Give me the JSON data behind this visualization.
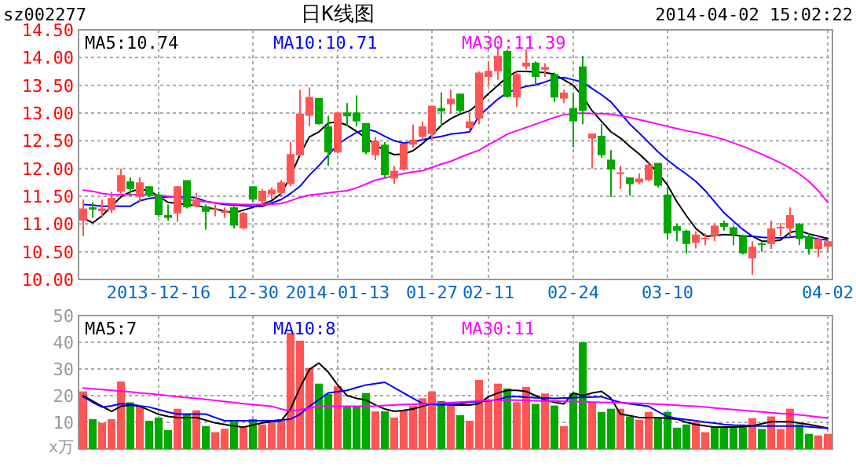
{
  "chart_data": [
    {
      "type": "candlestick",
      "title": "日K线图",
      "annotations": [
        "sz002277",
        "2014-04-02 15:02:22"
      ],
      "categories": [
        null,
        null,
        null,
        null,
        null,
        null,
        null,
        null,
        "2013-12-16",
        null,
        null,
        null,
        null,
        null,
        null,
        null,
        null,
        null,
        "12-30",
        null,
        null,
        null,
        null,
        null,
        null,
        null,
        null,
        "2014-01-13",
        null,
        null,
        null,
        null,
        null,
        null,
        null,
        null,
        null,
        "01-27",
        null,
        null,
        null,
        null,
        null,
        "02-11",
        null,
        null,
        null,
        null,
        null,
        null,
        null,
        null,
        "02-24",
        null,
        null,
        null,
        null,
        null,
        null,
        null,
        null,
        null,
        "03-10",
        null,
        null,
        null,
        null,
        null,
        null,
        null,
        null,
        null,
        null,
        null,
        null,
        null,
        null,
        null,
        null,
        "04-02"
      ],
      "ohlc": [
        [
          11.06,
          11.44,
          10.78,
          11.28
        ],
        [
          11.3,
          11.39,
          11.11,
          11.26
        ],
        [
          11.23,
          11.44,
          11.11,
          11.28
        ],
        [
          11.25,
          11.58,
          11.2,
          11.47
        ],
        [
          11.58,
          12.0,
          11.53,
          11.88
        ],
        [
          11.77,
          11.84,
          11.53,
          11.63
        ],
        [
          11.49,
          11.84,
          11.39,
          11.75
        ],
        [
          11.68,
          11.68,
          11.49,
          11.51
        ],
        [
          11.53,
          11.58,
          11.13,
          11.16
        ],
        [
          11.16,
          11.35,
          11.06,
          11.11
        ],
        [
          11.19,
          11.68,
          11.04,
          11.68
        ],
        [
          11.79,
          11.79,
          11.28,
          11.3
        ],
        [
          11.32,
          11.56,
          11.3,
          11.44
        ],
        [
          11.32,
          11.35,
          10.9,
          11.22
        ],
        [
          11.26,
          11.35,
          11.14,
          11.28
        ],
        [
          11.2,
          11.3,
          11.11,
          11.24
        ],
        [
          11.3,
          11.32,
          10.92,
          10.97
        ],
        [
          10.92,
          11.22,
          10.9,
          11.2
        ],
        [
          11.68,
          11.68,
          11.39,
          11.44
        ],
        [
          11.41,
          11.63,
          11.35,
          11.6
        ],
        [
          11.53,
          11.66,
          11.44,
          11.62
        ],
        [
          11.56,
          11.79,
          11.49,
          11.75
        ],
        [
          11.72,
          12.48,
          11.68,
          12.26
        ],
        [
          12.24,
          13.42,
          12.22,
          12.99
        ],
        [
          12.95,
          13.46,
          12.76,
          13.29
        ],
        [
          13.27,
          13.27,
          12.79,
          12.8
        ],
        [
          12.76,
          12.95,
          12.05,
          12.29
        ],
        [
          12.29,
          13.01,
          12.27,
          13.01
        ],
        [
          13.01,
          13.18,
          12.76,
          12.94
        ],
        [
          13.01,
          13.32,
          12.76,
          12.85
        ],
        [
          12.82,
          12.82,
          12.26,
          12.29
        ],
        [
          12.24,
          12.57,
          12.15,
          12.5
        ],
        [
          12.43,
          12.48,
          11.84,
          11.88
        ],
        [
          11.82,
          12.05,
          11.72,
          11.96
        ],
        [
          11.98,
          12.45,
          11.96,
          12.45
        ],
        [
          12.43,
          12.79,
          12.38,
          12.52
        ],
        [
          12.57,
          12.85,
          12.52,
          12.76
        ],
        [
          12.62,
          13.13,
          12.52,
          13.13
        ],
        [
          13.09,
          13.37,
          12.76,
          13.03
        ],
        [
          13.16,
          13.42,
          12.99,
          13.26
        ],
        [
          13.35,
          13.35,
          12.99,
          13.04
        ],
        [
          12.73,
          12.99,
          12.69,
          12.85
        ],
        [
          12.9,
          13.75,
          12.8,
          13.73
        ],
        [
          13.65,
          13.93,
          13.51,
          13.76
        ],
        [
          13.75,
          14.2,
          13.6,
          14.03
        ],
        [
          14.12,
          14.14,
          13.28,
          13.29
        ],
        [
          13.28,
          13.75,
          13.11,
          13.7
        ],
        [
          13.84,
          14.15,
          13.79,
          13.91
        ],
        [
          13.91,
          13.93,
          13.48,
          13.65
        ],
        [
          13.78,
          13.9,
          13.65,
          13.83
        ],
        [
          13.7,
          13.73,
          13.2,
          13.28
        ],
        [
          13.26,
          13.42,
          13.18,
          13.37
        ],
        [
          13.09,
          13.37,
          12.38,
          12.85
        ],
        [
          13.84,
          14.03,
          12.8,
          13.04
        ],
        [
          12.54,
          12.63,
          12.0,
          12.63
        ],
        [
          12.59,
          12.8,
          12.19,
          12.24
        ],
        [
          12.16,
          12.33,
          11.49,
          11.98
        ],
        [
          11.9,
          12.05,
          11.63,
          11.93
        ],
        [
          11.84,
          11.84,
          11.51,
          11.72
        ],
        [
          11.75,
          11.91,
          11.72,
          11.82
        ],
        [
          11.79,
          12.1,
          11.77,
          12.07
        ],
        [
          12.1,
          12.1,
          11.66,
          11.69
        ],
        [
          11.53,
          11.67,
          10.73,
          10.83
        ],
        [
          10.96,
          11.0,
          10.69,
          10.88
        ],
        [
          10.88,
          10.9,
          10.47,
          10.64
        ],
        [
          10.66,
          10.87,
          10.56,
          10.81
        ],
        [
          10.74,
          10.83,
          10.62,
          10.75
        ],
        [
          10.78,
          11.0,
          10.69,
          10.97
        ],
        [
          11.02,
          11.06,
          10.88,
          10.95
        ],
        [
          10.94,
          10.97,
          10.62,
          10.81
        ],
        [
          10.78,
          10.81,
          10.45,
          10.47
        ],
        [
          10.38,
          10.69,
          10.08,
          10.59
        ],
        [
          10.65,
          10.69,
          10.5,
          10.63
        ],
        [
          10.64,
          11.06,
          10.55,
          10.92
        ],
        [
          10.92,
          11.02,
          10.78,
          10.95
        ],
        [
          10.92,
          11.3,
          10.78,
          11.16
        ],
        [
          11.0,
          11.02,
          10.62,
          10.73
        ],
        [
          10.78,
          10.83,
          10.45,
          10.55
        ],
        [
          10.55,
          10.78,
          10.4,
          10.73
        ],
        [
          10.59,
          10.73,
          10.5,
          10.69
        ]
      ],
      "colors": [
        "#ff5555",
        "#00a800",
        "#ff5555",
        "#ff5555",
        "#ff5555",
        "#00a800",
        "#ff5555",
        "#00a800",
        "#00a800",
        "#00a800",
        "#ff5555",
        "#00a800",
        "#ff5555",
        "#00a800",
        "#ff5555",
        "#ff5555",
        "#00a800",
        "#ff5555",
        "#00a800",
        "#ff5555",
        "#ff5555",
        "#ff5555",
        "#ff5555",
        "#ff5555",
        "#ff5555",
        "#00a800",
        "#00a800",
        "#ff5555",
        "#00a800",
        "#00a800",
        "#00a800",
        "#ff5555",
        "#00a800",
        "#ff5555",
        "#ff5555",
        "#ff5555",
        "#ff5555",
        "#ff5555",
        "#00a800",
        "#ff5555",
        "#00a800",
        "#ff5555",
        "#ff5555",
        "#ff5555",
        "#ff5555",
        "#00a800",
        "#ff5555",
        "#ff5555",
        "#00a800",
        "#ff5555",
        "#00a800",
        "#ff5555",
        "#00a800",
        "#00a800",
        "#ff5555",
        "#00a800",
        "#00a800",
        "#ff5555",
        "#00a800",
        "#ff5555",
        "#ff5555",
        "#00a800",
        "#00a800",
        "#00a800",
        "#00a800",
        "#ff5555",
        "#ff5555",
        "#ff5555",
        "#00a800",
        "#00a800",
        "#00a800",
        "#ff5555",
        "#00a800",
        "#ff5555",
        "#ff5555",
        "#ff5555",
        "#00a800",
        "#00a800",
        "#ff5555",
        "#ff5555"
      ],
      "series": [
        {
          "type": "line",
          "name": "MA5:10.74",
          "color": "#000000",
          "values": [
            11.11,
            11.02,
            11.15,
            11.32,
            11.49,
            11.58,
            11.63,
            11.6,
            11.5,
            11.39,
            11.37,
            11.35,
            11.33,
            11.3,
            11.27,
            11.23,
            11.2,
            11.25,
            11.3,
            11.36,
            11.42,
            11.55,
            11.86,
            12.25,
            12.57,
            12.66,
            12.82,
            12.84,
            12.78,
            12.67,
            12.55,
            12.43,
            12.32,
            12.25,
            12.26,
            12.32,
            12.45,
            12.6,
            12.78,
            12.9,
            12.98,
            13.04,
            13.18,
            13.35,
            13.5,
            13.65,
            13.75,
            13.75,
            13.74,
            13.73,
            13.7,
            13.6,
            13.5,
            13.3,
            13.04,
            12.85,
            12.66,
            12.55,
            12.4,
            12.26,
            12.1,
            11.92,
            11.7,
            11.4,
            11.15,
            10.92,
            10.78,
            10.79,
            10.81,
            10.8,
            10.78,
            10.78,
            10.69,
            10.69,
            10.71,
            10.85,
            10.88,
            10.82,
            10.78,
            10.74
          ]
        },
        {
          "type": "line",
          "name": "MA10:10.71",
          "color": "#0000ff",
          "values": [
            11.35,
            11.34,
            11.32,
            11.32,
            11.32,
            11.32,
            11.42,
            11.46,
            11.48,
            11.49,
            11.49,
            11.49,
            11.47,
            11.41,
            11.38,
            11.35,
            11.34,
            11.33,
            11.32,
            11.32,
            11.38,
            11.44,
            11.55,
            11.68,
            11.88,
            12.05,
            12.24,
            12.43,
            12.55,
            12.65,
            12.71,
            12.67,
            12.58,
            12.5,
            12.46,
            12.48,
            12.52,
            12.55,
            12.58,
            12.62,
            12.64,
            12.66,
            12.95,
            13.1,
            13.25,
            13.37,
            13.43,
            13.48,
            13.51,
            13.56,
            13.62,
            13.64,
            13.6,
            13.56,
            13.44,
            13.33,
            13.2,
            13.0,
            12.8,
            12.64,
            12.47,
            12.3,
            12.15,
            12.02,
            11.9,
            11.77,
            11.6,
            11.4,
            11.2,
            11.05,
            10.9,
            10.78,
            10.76,
            10.75,
            10.75,
            10.76,
            10.78,
            10.76,
            10.73,
            10.71
          ]
        },
        {
          "type": "line",
          "name": "MA30:11.39",
          "color": "#ff00ff",
          "values": [
            11.61,
            11.59,
            11.55,
            11.53,
            11.53,
            11.53,
            11.53,
            11.52,
            11.52,
            11.5,
            11.47,
            11.44,
            11.42,
            11.4,
            11.38,
            11.37,
            11.36,
            11.35,
            11.35,
            11.35,
            11.36,
            11.37,
            11.42,
            11.48,
            11.52,
            11.54,
            11.56,
            11.58,
            11.6,
            11.65,
            11.72,
            11.79,
            11.83,
            11.87,
            11.91,
            11.94,
            11.96,
            12.02,
            12.08,
            12.13,
            12.2,
            12.27,
            12.33,
            12.43,
            12.52,
            12.62,
            12.68,
            12.74,
            12.8,
            12.86,
            12.92,
            12.97,
            12.99,
            13.0,
            12.99,
            12.99,
            12.98,
            12.95,
            12.92,
            12.88,
            12.84,
            12.8,
            12.76,
            12.72,
            12.68,
            12.65,
            12.61,
            12.57,
            12.52,
            12.46,
            12.4,
            12.33,
            12.26,
            12.18,
            12.1,
            12.01,
            11.9,
            11.77,
            11.6,
            11.39
          ]
        }
      ],
      "ylim": [
        10,
        14.5
      ],
      "yticks": [
        {
          "value": 10,
          "label": "10.00"
        },
        {
          "value": 10.5,
          "label": "10.50"
        },
        {
          "value": 11,
          "label": "11.00"
        },
        {
          "value": 11.5,
          "label": "11.50"
        },
        {
          "value": 12,
          "label": "12.00"
        },
        {
          "value": 12.5,
          "label": "12.50"
        },
        {
          "value": 13,
          "label": "13.00"
        },
        {
          "value": 13.5,
          "label": "13.50"
        },
        {
          "value": 14,
          "label": "14.00"
        },
        {
          "value": 14.5,
          "label": "14.50"
        }
      ],
      "grid": true,
      "legend": "top"
    },
    {
      "type": "bar",
      "ylabel": "x万",
      "categories": [
        null,
        null,
        null,
        null,
        null,
        null,
        null,
        null,
        null,
        null,
        null,
        null,
        null,
        null,
        null,
        null,
        null,
        null,
        null,
        null,
        null,
        null,
        null,
        null,
        null,
        null,
        null,
        null,
        null,
        null,
        null,
        null,
        null,
        null,
        null,
        null,
        null,
        null,
        null,
        null,
        null,
        null,
        null,
        null,
        null,
        null,
        null,
        null,
        null,
        null,
        null,
        null,
        null,
        null,
        null,
        null,
        null,
        null,
        null,
        null,
        null,
        null,
        null,
        null,
        null,
        null,
        null,
        null,
        null,
        null,
        null,
        null,
        null,
        null,
        null,
        null,
        null,
        null,
        null,
        null
      ],
      "values": [
        21.6,
        11.2,
        9.8,
        11.2,
        25.3,
        17.5,
        16.1,
        10.6,
        11.8,
        7.1,
        15.1,
        13.1,
        14.5,
        8.6,
        6.3,
        7.6,
        10.2,
        8.2,
        11.2,
        9.2,
        9.8,
        11.2,
        43.5,
        40.6,
        30.4,
        24.5,
        20.6,
        23.5,
        16.1,
        16.1,
        21.0,
        14.1,
        14.1,
        11.8,
        14.5,
        16.1,
        19.0,
        21.6,
        18.0,
        17.1,
        12.7,
        10.6,
        25.9,
        18.6,
        24.5,
        22.7,
        17.5,
        23.3,
        16.9,
        20.8,
        16.3,
        8.6,
        21.0,
        40.0,
        17.5,
        13.9,
        15.1,
        15.1,
        12.2,
        11.0,
        13.9,
        11.6,
        13.9,
        8.0,
        9.2,
        10.0,
        6.3,
        8.4,
        8.4,
        8.4,
        8.4,
        11.6,
        7.5,
        12.2,
        7.5,
        15.1,
        9.2,
        5.7,
        5.1,
        5.7
      ],
      "colors": [
        "#ff5555",
        "#00a800",
        "#ff5555",
        "#ff5555",
        "#ff5555",
        "#00a800",
        "#ff5555",
        "#00a800",
        "#00a800",
        "#00a800",
        "#ff5555",
        "#00a800",
        "#ff5555",
        "#00a800",
        "#ff5555",
        "#ff5555",
        "#00a800",
        "#ff5555",
        "#00a800",
        "#ff5555",
        "#ff5555",
        "#ff5555",
        "#ff5555",
        "#ff5555",
        "#ff5555",
        "#00a800",
        "#00a800",
        "#ff5555",
        "#00a800",
        "#00a800",
        "#00a800",
        "#ff5555",
        "#00a800",
        "#ff5555",
        "#ff5555",
        "#ff5555",
        "#ff5555",
        "#ff5555",
        "#00a800",
        "#ff5555",
        "#00a800",
        "#ff5555",
        "#ff5555",
        "#ff5555",
        "#ff5555",
        "#00a800",
        "#ff5555",
        "#ff5555",
        "#00a800",
        "#ff5555",
        "#00a800",
        "#ff5555",
        "#00a800",
        "#00a800",
        "#ff5555",
        "#00a800",
        "#00a800",
        "#ff5555",
        "#00a800",
        "#ff5555",
        "#ff5555",
        "#00a800",
        "#00a800",
        "#00a800",
        "#00a800",
        "#ff5555",
        "#ff5555",
        "#00a800",
        "#00a800",
        "#00a800",
        "#00a800",
        "#ff5555",
        "#00a800",
        "#ff5555",
        "#ff5555",
        "#ff5555",
        "#00a800",
        "#00a800",
        "#ff5555",
        "#ff5555"
      ],
      "series": [
        {
          "type": "line",
          "name": "MA5:7",
          "color": "#000000",
          "values": [
            20,
            18,
            16,
            14.1,
            16,
            16.5,
            16,
            14.5,
            13,
            12.2,
            11.8,
            11.8,
            11.8,
            10.8,
            9.8,
            9.2,
            8.6,
            8.2,
            9,
            9.8,
            10.2,
            10.6,
            15,
            23,
            29.8,
            32.2,
            28.8,
            24,
            20,
            19,
            18.4,
            16.5,
            15,
            14.1,
            14.5,
            15,
            16,
            17,
            17,
            16.5,
            16.5,
            16.5,
            17,
            19.6,
            21,
            22,
            22,
            21.6,
            20,
            18.4,
            17.5,
            16.9,
            21,
            20,
            21,
            21.6,
            19,
            13.1,
            12.5,
            11.8,
            11.8,
            11.8,
            11.5,
            11.2,
            10,
            9.2,
            8.7,
            8.2,
            8.2,
            8.2,
            8.4,
            8.6,
            9.5,
            10.2,
            10.2,
            10.2,
            9.7,
            9.2,
            8.5,
            7.8
          ]
        },
        {
          "type": "line",
          "name": "MA10:8",
          "color": "#0000ff",
          "values": [
            19.6,
            17.5,
            15.7,
            16.2,
            17,
            16.8,
            16.2,
            15.7,
            14.8,
            13.8,
            13.1,
            13.1,
            13.1,
            13.1,
            11.8,
            10.6,
            10.6,
            10.6,
            10.6,
            10.6,
            10.6,
            10.9,
            11.2,
            13,
            16,
            18.5,
            21,
            21.5,
            22,
            23,
            24,
            24.5,
            25,
            23,
            21,
            19,
            17,
            16.8,
            16.5,
            16.8,
            17,
            17.5,
            17.8,
            18,
            18.5,
            19.6,
            19.6,
            19.4,
            19.2,
            19.1,
            19,
            19.1,
            19.2,
            19.4,
            19.5,
            19.6,
            18.5,
            17.5,
            16.9,
            16.5,
            16,
            14,
            12.2,
            11.5,
            11,
            10.6,
            10.1,
            9.7,
            9.2,
            9,
            8.9,
            8.7,
            8.6,
            8.6,
            8.6,
            8.6,
            8.6,
            8.3,
            8,
            7.8
          ]
        },
        {
          "type": "line",
          "name": "MA30:11",
          "color": "#ff00ff",
          "values": [
            22.9,
            22.6,
            22.3,
            22,
            21.7,
            21.4,
            21,
            20.7,
            20.4,
            20,
            19.6,
            19.3,
            19,
            18.6,
            18.2,
            17.8,
            17.4,
            17,
            16.6,
            16.3,
            16,
            15,
            14.1,
            14.8,
            15.4,
            16,
            16,
            16,
            16,
            16,
            16,
            16.1,
            16.3,
            16.5,
            16.7,
            16.8,
            16.9,
            17,
            17.2,
            17.4,
            17.6,
            17.8,
            18,
            18.2,
            18.3,
            18.4,
            18.3,
            18.2,
            18.1,
            18,
            18,
            17.9,
            17.8,
            17.7,
            17.6,
            17.5,
            17.4,
            17.3,
            17.2,
            17.1,
            17,
            16.8,
            16.6,
            16.4,
            16.2,
            16,
            15.7,
            15.4,
            15.1,
            14.8,
            14.5,
            14.2,
            13.9,
            13.6,
            13.3,
            13.1,
            12.8,
            12.4,
            12,
            11.6
          ]
        }
      ],
      "ylim": [
        0,
        50
      ],
      "yticks": [
        10,
        20,
        30,
        40,
        50
      ],
      "grid": true,
      "legend": "top",
      "tick_labels": "y"
    }
  ]
}
